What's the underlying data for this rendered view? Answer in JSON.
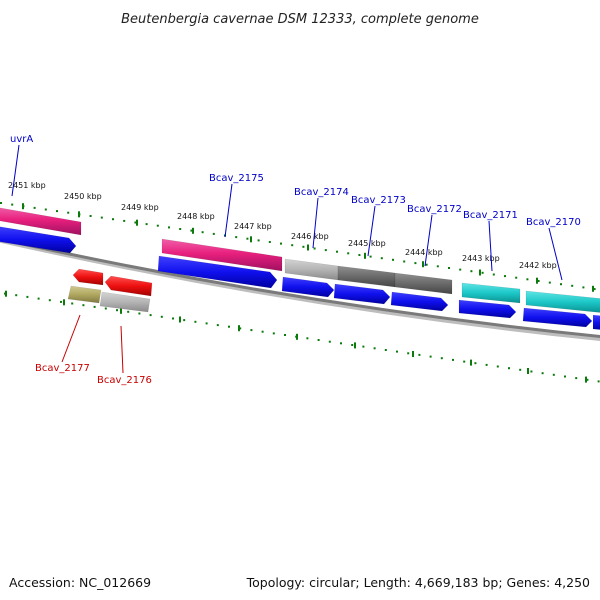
{
  "title": "Beutenbergia cavernae DSM 12333, complete genome",
  "footer": {
    "accession": "Accession: NC_012669",
    "summary": "Topology: circular; Length: 4,669,183 bp; Genes: 4,250"
  },
  "colors": {
    "upper_ticks": "#0a7a0a",
    "lower_ticks": "#0a7a0a",
    "backbone": "#7a7a7a",
    "label_upper": "#0000c8",
    "label_lower": "#c80000",
    "pink": "#e8207e",
    "blue": "#1010ee",
    "gray_light": "#b4b4b4",
    "gray_dark": "#6a6a6a",
    "teal": "#1cc8c8",
    "red": "#ee1010",
    "olive": "#b0a860"
  },
  "kbp_labels": [
    "2451 kbp",
    "2450 kbp",
    "2449 kbp",
    "2448 kbp",
    "2447 kbp",
    "2446 kbp",
    "2445 kbp",
    "2444 kbp",
    "2443 kbp",
    "2442 kbp"
  ],
  "gene_labels": [
    {
      "text": "uvrA",
      "side": "upper"
    },
    {
      "text": "Bcav_2175",
      "side": "upper"
    },
    {
      "text": "Bcav_2174",
      "side": "upper"
    },
    {
      "text": "Bcav_2173",
      "side": "upper"
    },
    {
      "text": "Bcav_2172",
      "side": "upper"
    },
    {
      "text": "Bcav_2171",
      "side": "upper"
    },
    {
      "text": "Bcav_2170",
      "side": "upper"
    },
    {
      "text": "Bcav_2177",
      "side": "lower"
    },
    {
      "text": "Bcav_2176",
      "side": "lower"
    }
  ],
  "features": [
    {
      "name": "uvrA-cog",
      "color": "pink",
      "track": "cog-fwd"
    },
    {
      "name": "uvrA-cds",
      "color": "blue",
      "track": "cds-fwd"
    },
    {
      "name": "bcav2175-cog",
      "color": "pink",
      "track": "cog-fwd"
    },
    {
      "name": "bcav2175-cds",
      "color": "blue",
      "track": "cds-fwd"
    },
    {
      "name": "bcav2174-cog",
      "color": "gray_light",
      "track": "cog-fwd"
    },
    {
      "name": "bcav2174-cds",
      "color": "blue",
      "track": "cds-fwd"
    },
    {
      "name": "bcav2173-cog",
      "color": "gray_dark",
      "track": "cog-fwd"
    },
    {
      "name": "bcav2173-cds",
      "color": "blue",
      "track": "cds-fwd"
    },
    {
      "name": "bcav2172-cog",
      "color": "gray_dark",
      "track": "cog-fwd"
    },
    {
      "name": "bcav2172-cds",
      "color": "blue",
      "track": "cds-fwd"
    },
    {
      "name": "bcav2171-cog",
      "color": "teal",
      "track": "cog-fwd"
    },
    {
      "name": "bcav2171-cds",
      "color": "blue",
      "track": "cds-fwd"
    },
    {
      "name": "bcav2170-cog",
      "color": "teal",
      "track": "cog-fwd"
    },
    {
      "name": "bcav2170-cds",
      "color": "blue",
      "track": "cds-fwd"
    },
    {
      "name": "bcav2177-cds",
      "color": "red",
      "track": "cds-rev"
    },
    {
      "name": "bcav2177-cog",
      "color": "olive",
      "track": "cog-rev"
    },
    {
      "name": "bcav2176-cds",
      "color": "red",
      "track": "cds-rev"
    },
    {
      "name": "bcav2176-cog",
      "color": "gray_light",
      "track": "cog-rev"
    }
  ]
}
